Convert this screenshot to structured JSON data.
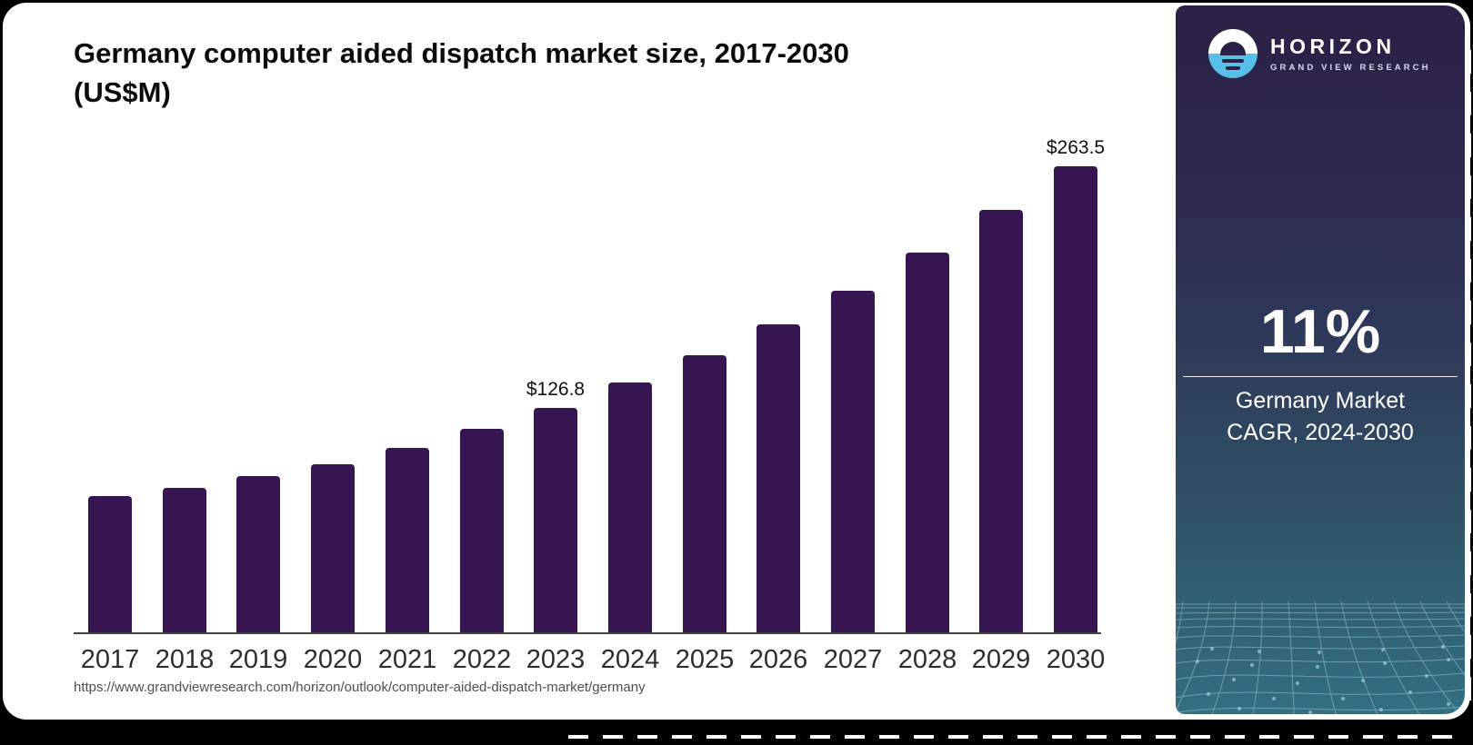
{
  "title": {
    "line1": "Germany computer aided dispatch market size, 2017-2030",
    "line2": "(US$M)"
  },
  "chart_data": {
    "type": "bar",
    "title": "Germany computer aided dispatch market size, 2017-2030 (US$M)",
    "unit": "US$M",
    "categories": [
      "2017",
      "2018",
      "2019",
      "2020",
      "2021",
      "2022",
      "2023",
      "2024",
      "2025",
      "2026",
      "2027",
      "2028",
      "2029",
      "2030"
    ],
    "values": [
      77.2,
      81.7,
      88.1,
      95.0,
      104.4,
      114.9,
      126.8,
      141.0,
      156.6,
      174.0,
      193.3,
      214.8,
      238.6,
      263.5
    ],
    "annotations": [
      {
        "category": "2023",
        "text": "$126.8"
      },
      {
        "category": "2030",
        "text": "$263.5"
      }
    ],
    "xlabel": "",
    "ylabel": "",
    "ylim": [
      0,
      275
    ],
    "grid": false,
    "legend": "none",
    "bar_color": "#371551"
  },
  "source_url": "https://www.grandviewresearch.com/horizon/outlook/computer-aided-dispatch-market/germany",
  "side_panel": {
    "brand": "HORIZON",
    "sub_brand": "GRAND VIEW RESEARCH",
    "logo_icon": "horizon-sunrise-icon",
    "stat_value": "11%",
    "stat_label_line1": "Germany Market",
    "stat_label_line2": "CAGR, 2024-2030",
    "colors": {
      "panel_top": "#2b2046",
      "panel_bottom": "#317082",
      "logo_blue": "#58bfe8",
      "mesh_line": "#aecfd8"
    }
  }
}
